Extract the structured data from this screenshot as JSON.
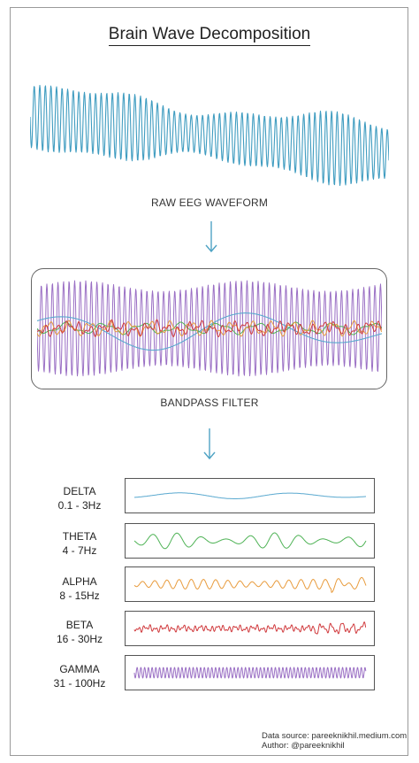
{
  "title": "Brain Wave Decomposition",
  "raw_label": "RAW EEG WAVEFORM",
  "filter_label": "BANDPASS FILTER",
  "colors": {
    "raw": "#3f9cc0",
    "delta": "#5aa9cf",
    "theta": "#4fb356",
    "alpha": "#e89b3c",
    "beta": "#d0393c",
    "gamma": "#9a6fc4",
    "arrow": "#4fa3c4"
  },
  "bands": [
    {
      "key": "delta",
      "name": "DELTA",
      "range": "0.1 - 3Hz"
    },
    {
      "key": "theta",
      "name": "THETA",
      "range": "4 - 7Hz"
    },
    {
      "key": "alpha",
      "name": "ALPHA",
      "range": "8 - 15Hz"
    },
    {
      "key": "beta",
      "name": "BETA",
      "range": "16 - 30Hz"
    },
    {
      "key": "gamma",
      "name": "GAMMA",
      "range": "31 - 100Hz"
    }
  ],
  "credit": {
    "source": "Data source: pareeknikhil.medium.com",
    "author": "Author: @pareeknikhil"
  },
  "icons": {
    "arrow": "down-arrow-icon"
  }
}
